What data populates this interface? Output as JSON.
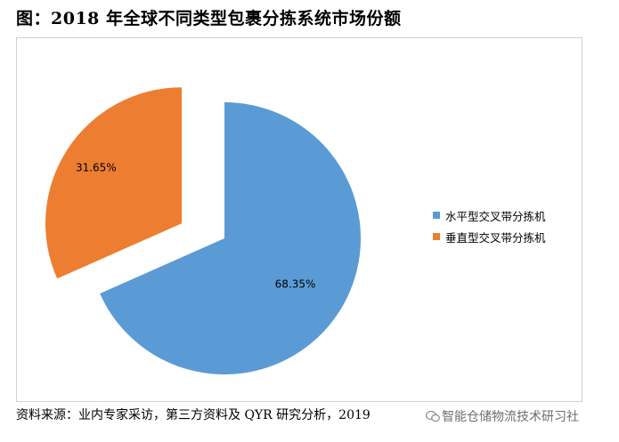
{
  "title": "图：2018 年全球不同类型包裹分拣系统市场份额",
  "source": "资料来源：业内专家采访，第三方资料及 QYR 研究分析，2019",
  "watermark": "智能仓储物流技术研习社",
  "colors": {
    "series_blue": "#5b9bd5",
    "series_orange": "#ed7d31",
    "frame": "#d0d0d0"
  },
  "chart_data": {
    "type": "pie",
    "categories": [
      "水平型交叉带分拣机",
      "垂直型交叉带分拣机"
    ],
    "values": [
      68.35,
      31.65
    ],
    "data_labels": [
      "68.35%",
      "31.65%"
    ],
    "legend_position": "right",
    "exploded": true
  }
}
